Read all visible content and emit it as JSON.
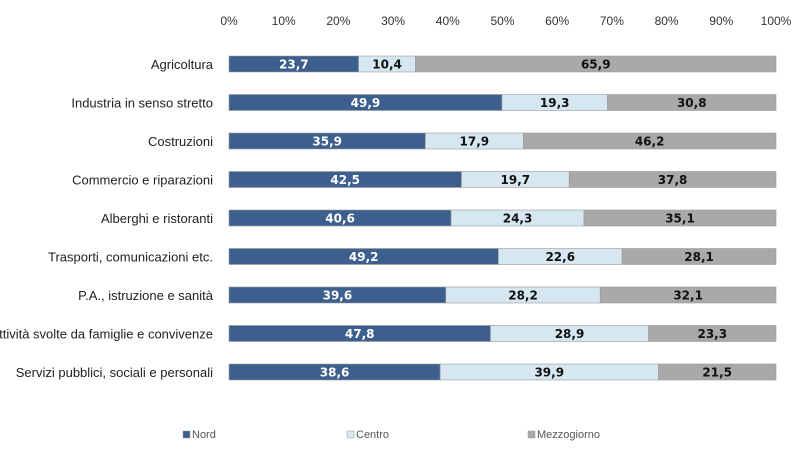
{
  "chart_data": {
    "type": "bar",
    "orientation": "horizontal",
    "stacked": "percent",
    "categories": [
      "Agricoltura",
      "Industria in senso stretto",
      "Costruzioni",
      "Commercio e riparazioni",
      "Alberghi e ristoranti",
      "Trasporti, comunicazioni etc.",
      "P.A., istruzione e sanità",
      "Attività svolte da famiglie e convivenze",
      "Servizi pubblici, sociali e personali"
    ],
    "series": [
      {
        "name": "Nord",
        "color": "#3d5f8e",
        "label_color": "#ffffff",
        "values": [
          23.7,
          49.9,
          35.9,
          42.5,
          40.6,
          49.2,
          39.6,
          47.8,
          38.6
        ]
      },
      {
        "name": "Centro",
        "color": "#d6e7f2",
        "label_color": "#111111",
        "values": [
          10.4,
          19.3,
          17.9,
          19.7,
          24.3,
          22.6,
          28.2,
          28.9,
          39.9
        ]
      },
      {
        "name": "Mezzogiorno",
        "color": "#a9a9a9",
        "label_color": "#111111",
        "values": [
          65.9,
          30.8,
          46.2,
          37.8,
          35.1,
          28.1,
          32.1,
          23.3,
          21.5
        ]
      }
    ],
    "value_labels": [
      [
        "23,7",
        "10,4",
        "65,9"
      ],
      [
        "49,9",
        "19,3",
        "30,8"
      ],
      [
        "35,9",
        "17,9",
        "46,2"
      ],
      [
        "42,5",
        "19,7",
        "37,8"
      ],
      [
        "40,6",
        "24,3",
        "35,1"
      ],
      [
        "49,2",
        "22,6",
        "28,1"
      ],
      [
        "39,6",
        "28,2",
        "32,1"
      ],
      [
        "47,8",
        "28,9",
        "23,3"
      ],
      [
        "38,6",
        "39,9",
        "21,5"
      ]
    ],
    "x_ticks": [
      "0%",
      "10%",
      "20%",
      "30%",
      "40%",
      "50%",
      "60%",
      "70%",
      "80%",
      "90%",
      "100%"
    ],
    "xlim": [
      0,
      100
    ],
    "legend_position": "bottom",
    "grid": false
  }
}
